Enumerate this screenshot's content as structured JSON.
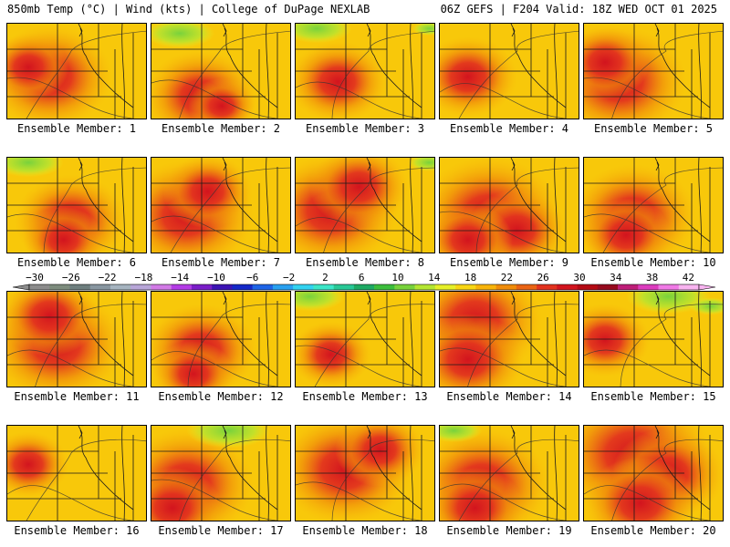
{
  "header": {
    "left": "850mb Temp (°C) | Wind (kts) | College of DuPage NEXLAB",
    "right": "06Z GEFS | F204 Valid: 18Z WED OCT 01 2025"
  },
  "members": [
    {
      "label": "Ensemble Member: 1",
      "hot": [
        [
          0.3,
          0.55,
          0.28
        ],
        [
          0.15,
          0.45,
          0.18
        ]
      ],
      "green": []
    },
    {
      "label": "Ensemble Member: 2",
      "hot": [
        [
          0.35,
          0.75,
          0.25
        ],
        [
          0.5,
          0.85,
          0.15
        ]
      ],
      "green": [
        [
          0.2,
          0.1,
          0.25
        ]
      ]
    },
    {
      "label": "Ensemble Member: 3",
      "hot": [
        [
          0.3,
          0.6,
          0.22
        ]
      ],
      "green": [
        [
          0.15,
          0.05,
          0.25
        ],
        [
          0.95,
          0.05,
          0.12
        ]
      ]
    },
    {
      "label": "Ensemble Member: 4",
      "hot": [
        [
          0.2,
          0.55,
          0.22
        ]
      ],
      "green": []
    },
    {
      "label": "Ensemble Member: 5",
      "hot": [
        [
          0.25,
          0.6,
          0.3
        ],
        [
          0.15,
          0.4,
          0.2
        ]
      ],
      "green": []
    },
    {
      "label": "Ensemble Member: 6",
      "hot": [
        [
          0.45,
          0.65,
          0.25
        ],
        [
          0.4,
          0.85,
          0.18
        ]
      ],
      "green": [
        [
          0.15,
          0.05,
          0.25
        ]
      ]
    },
    {
      "label": "Ensemble Member: 7",
      "hot": [
        [
          0.25,
          0.6,
          0.3
        ],
        [
          0.4,
          0.35,
          0.2
        ]
      ],
      "green": []
    },
    {
      "label": "Ensemble Member: 8",
      "hot": [
        [
          0.25,
          0.55,
          0.3
        ],
        [
          0.45,
          0.3,
          0.22
        ]
      ],
      "green": [
        [
          0.95,
          0.05,
          0.15
        ]
      ]
    },
    {
      "label": "Ensemble Member: 9",
      "hot": [
        [
          0.35,
          0.6,
          0.32
        ],
        [
          0.55,
          0.75,
          0.22
        ],
        [
          0.2,
          0.85,
          0.2
        ]
      ],
      "green": []
    },
    {
      "label": "Ensemble Member: 10",
      "hot": [
        [
          0.35,
          0.6,
          0.28
        ],
        [
          0.3,
          0.8,
          0.2
        ]
      ],
      "green": []
    },
    {
      "label": "Ensemble Member: 11",
      "hot": [
        [
          0.35,
          0.55,
          0.3
        ],
        [
          0.3,
          0.25,
          0.22
        ]
      ],
      "green": []
    },
    {
      "label": "Ensemble Member: 12",
      "hot": [
        [
          0.35,
          0.6,
          0.25
        ],
        [
          0.3,
          0.85,
          0.18
        ]
      ],
      "green": []
    },
    {
      "label": "Ensemble Member: 13",
      "hot": [
        [
          0.25,
          0.65,
          0.18
        ]
      ],
      "green": [
        [
          0.1,
          0.05,
          0.25
        ]
      ]
    },
    {
      "label": "Ensemble Member: 14",
      "hot": [
        [
          0.25,
          0.3,
          0.3
        ],
        [
          0.2,
          0.7,
          0.25
        ]
      ],
      "green": []
    },
    {
      "label": "Ensemble Member: 15",
      "hot": [
        [
          0.15,
          0.5,
          0.2
        ]
      ],
      "green": [
        [
          0.6,
          0.05,
          0.3
        ],
        [
          0.9,
          0.15,
          0.15
        ]
      ]
    },
    {
      "label": "Ensemble Member: 16",
      "hot": [
        [
          0.15,
          0.4,
          0.18
        ]
      ],
      "green": []
    },
    {
      "label": "Ensemble Member: 17",
      "hot": [
        [
          0.25,
          0.6,
          0.3
        ],
        [
          0.15,
          0.85,
          0.22
        ]
      ],
      "green": [
        [
          0.55,
          0.05,
          0.3
        ]
      ]
    },
    {
      "label": "Ensemble Member: 18",
      "hot": [
        [
          0.35,
          0.45,
          0.3
        ],
        [
          0.6,
          0.25,
          0.2
        ]
      ],
      "green": []
    },
    {
      "label": "Ensemble Member: 19",
      "hot": [
        [
          0.3,
          0.6,
          0.3
        ],
        [
          0.25,
          0.85,
          0.22
        ]
      ],
      "green": [
        [
          0.1,
          0.05,
          0.2
        ]
      ]
    },
    {
      "label": "Ensemble Member: 20",
      "hot": [
        [
          0.35,
          0.3,
          0.35
        ],
        [
          0.6,
          0.5,
          0.25
        ],
        [
          0.4,
          0.8,
          0.25
        ]
      ],
      "green": []
    }
  ],
  "colorbar": {
    "ticks": [
      "-30",
      "-26",
      "-22",
      "-18",
      "-14",
      "-10",
      "-6",
      "-2",
      "2",
      "6",
      "10",
      "14",
      "18",
      "22",
      "26",
      "30",
      "34",
      "38",
      "42"
    ],
    "colors": [
      "#8c8c8c",
      "#7d8c7d",
      "#6e7e7e",
      "#8896a0",
      "#a6b4c0",
      "#b8a6d8",
      "#d27ae6",
      "#b43ce6",
      "#7a1ec8",
      "#3c14b4",
      "#1428c8",
      "#1e64e6",
      "#28a0f0",
      "#32d2f0",
      "#3ce6c8",
      "#28c896",
      "#1eaa64",
      "#3cbe3c",
      "#78d23c",
      "#b4e632",
      "#e6f028",
      "#f8d614",
      "#f8b40a",
      "#f08c0a",
      "#ea6414",
      "#e2321e",
      "#d2141e",
      "#b40a14",
      "#960a1e",
      "#be1e78",
      "#dc3cbe",
      "#f07ae6",
      "#f8b4f0"
    ]
  }
}
